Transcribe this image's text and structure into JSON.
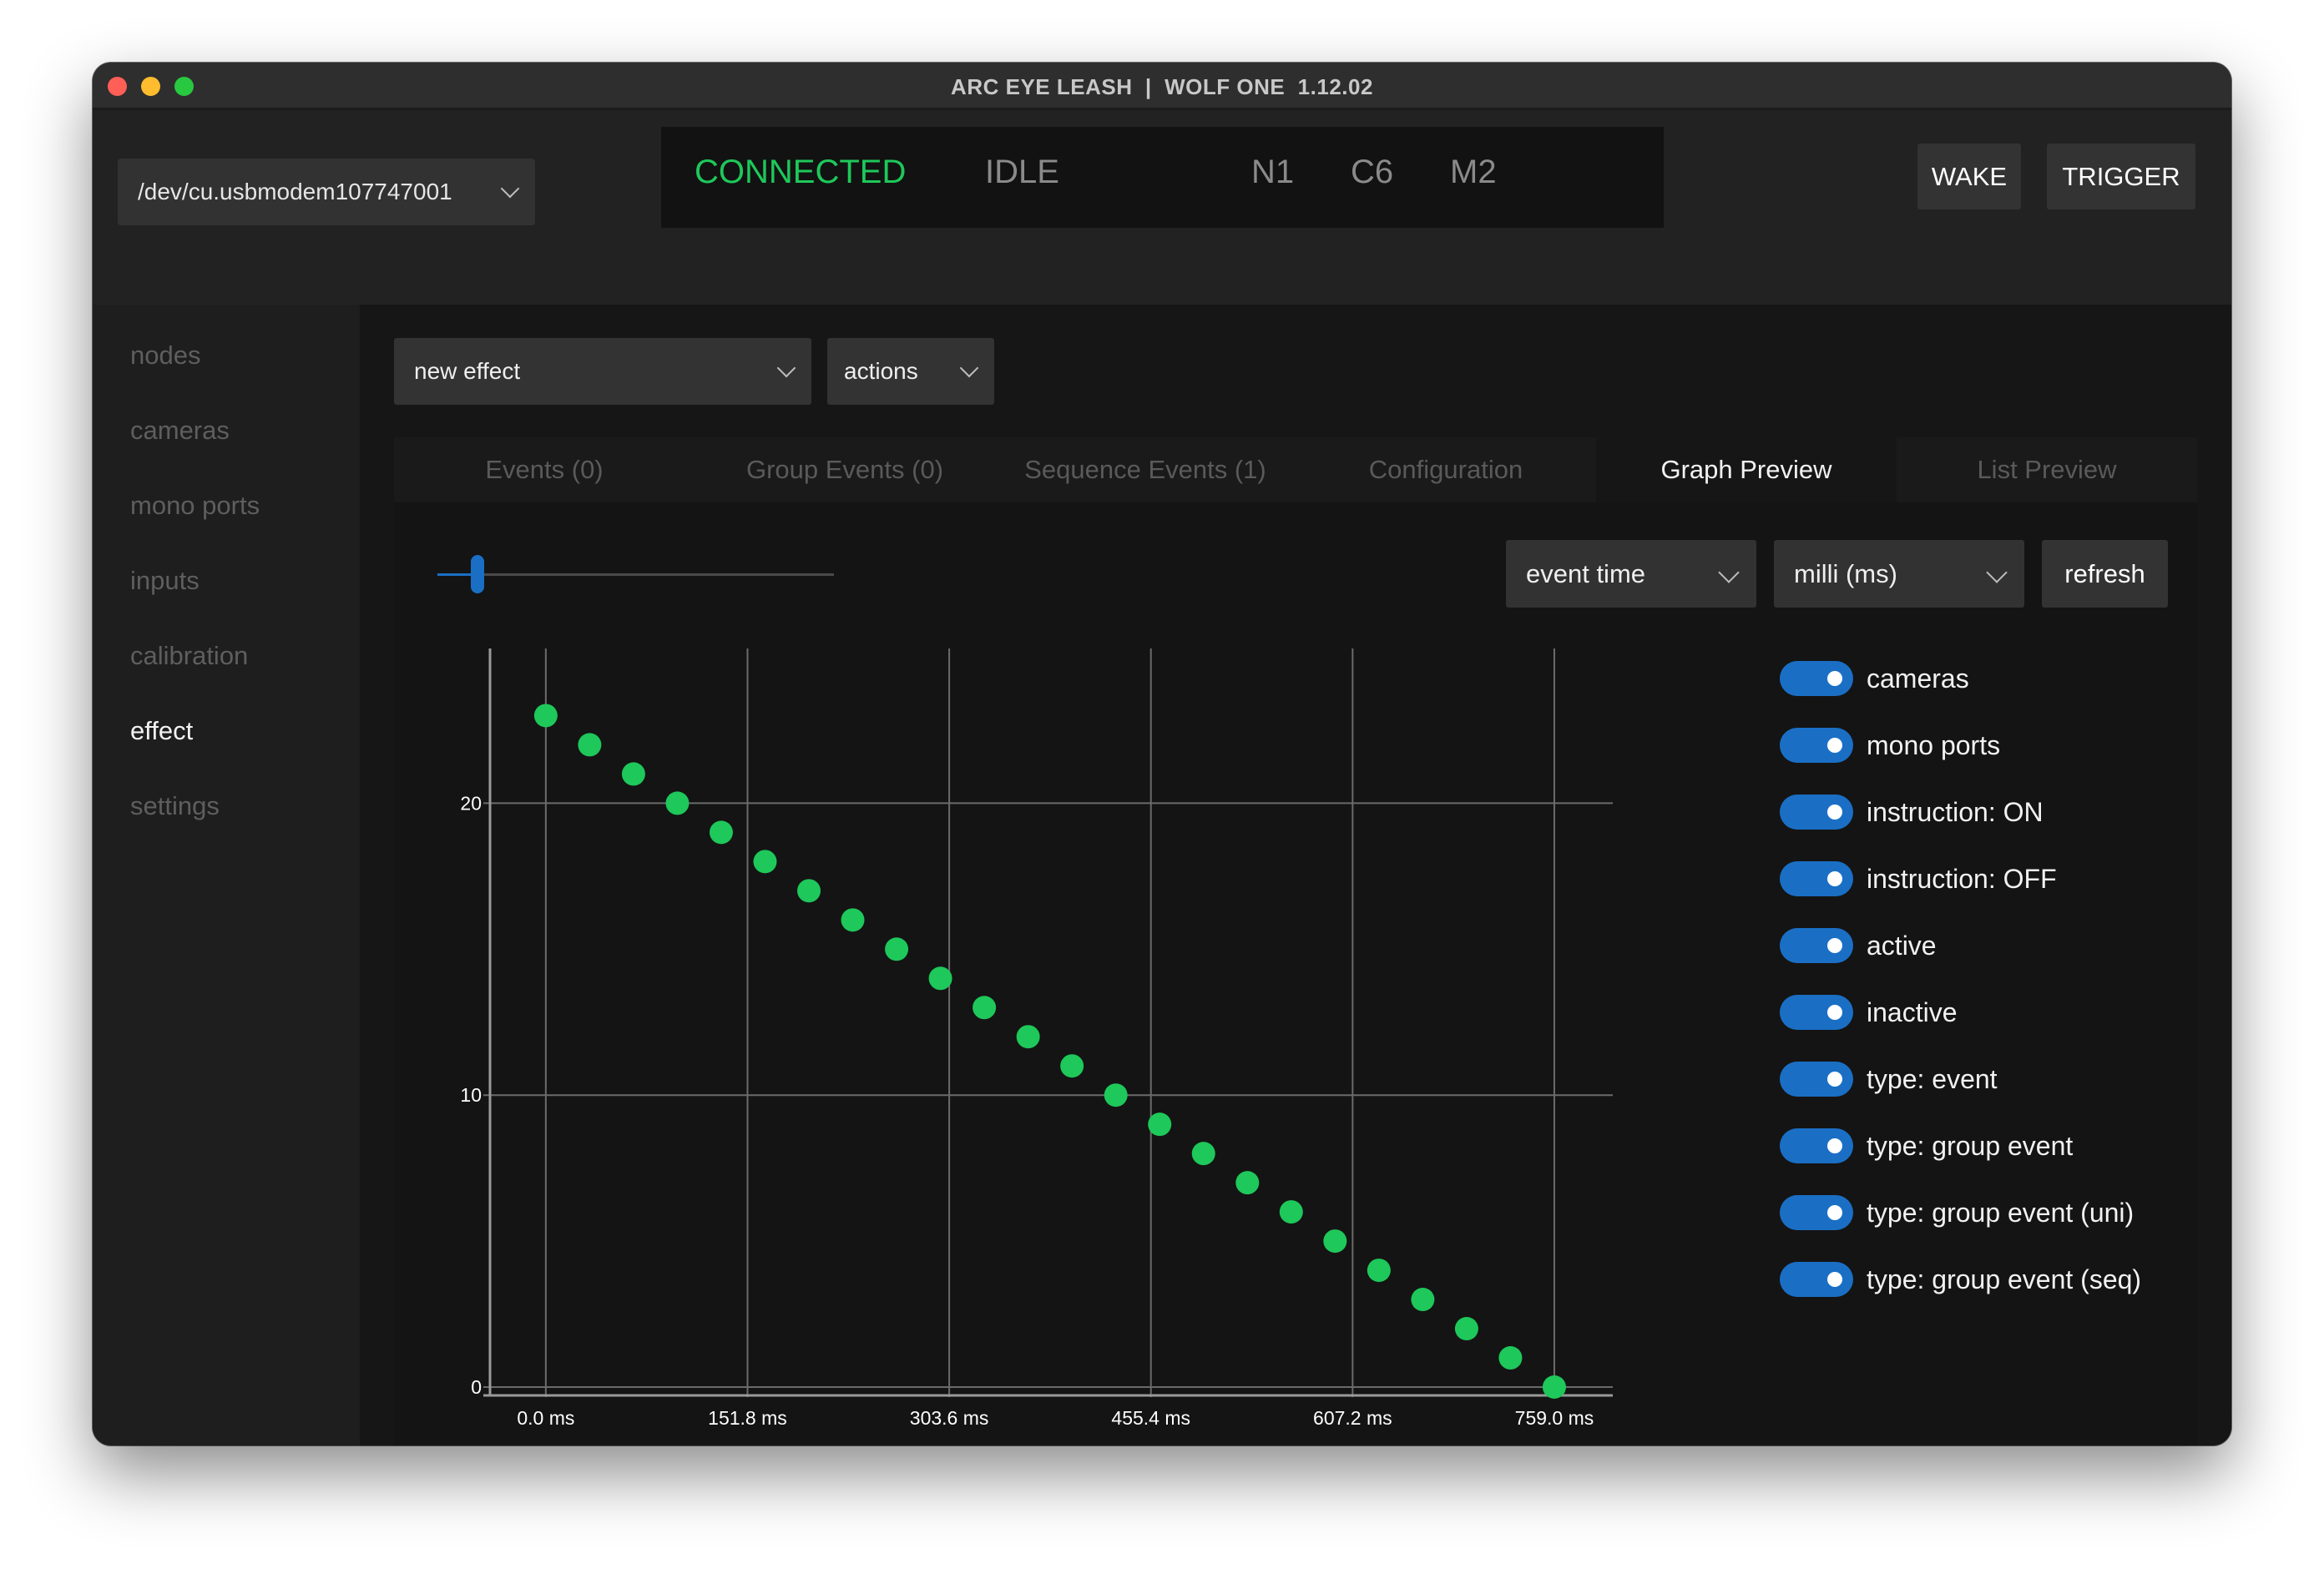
{
  "window": {
    "title": "ARC EYE LEASH  |  WOLF ONE  1.12.02"
  },
  "topbar": {
    "port": "/dev/cu.usbmodem107747001",
    "status": {
      "connection": "CONNECTED",
      "state": "IDLE",
      "n": "N1",
      "c": "C6",
      "m": "M2"
    },
    "wake_label": "WAKE",
    "trigger_label": "TRIGGER"
  },
  "sidebar": {
    "items": [
      {
        "label": "nodes"
      },
      {
        "label": "cameras"
      },
      {
        "label": "mono ports"
      },
      {
        "label": "inputs"
      },
      {
        "label": "calibration"
      },
      {
        "label": "effect"
      },
      {
        "label": "settings"
      }
    ],
    "active": "effect"
  },
  "main": {
    "effect_select": "new effect",
    "actions_select": "actions",
    "tabs": [
      {
        "label": "Events (0)"
      },
      {
        "label": "Group Events (0)"
      },
      {
        "label": "Sequence Events (1)"
      },
      {
        "label": "Configuration"
      },
      {
        "label": "Graph Preview"
      },
      {
        "label": "List Preview"
      }
    ],
    "active_tab": "Graph Preview",
    "controls": {
      "time_mode": "event time",
      "unit": "milli (ms)",
      "refresh_label": "refresh",
      "slider_value": 0.1
    },
    "toggles": [
      {
        "label": "cameras",
        "on": true
      },
      {
        "label": "mono ports",
        "on": true
      },
      {
        "label": "instruction: ON",
        "on": true
      },
      {
        "label": "instruction: OFF",
        "on": true
      },
      {
        "label": "active",
        "on": true
      },
      {
        "label": "inactive",
        "on": true
      },
      {
        "label": "type: event",
        "on": true
      },
      {
        "label": "type: group event",
        "on": true
      },
      {
        "label": "type: group event (uni)",
        "on": true
      },
      {
        "label": "type: group event (seq)",
        "on": true
      }
    ]
  },
  "colors": {
    "accent": "#1a6fc5",
    "connected": "#1ec85a",
    "point": "#1ec85a"
  },
  "chart_data": {
    "type": "scatter",
    "x_ticks": [
      {
        "value": 0.0,
        "label": "0.0 ms"
      },
      {
        "value": 151.8,
        "label": "151.8 ms"
      },
      {
        "value": 303.6,
        "label": "303.6 ms"
      },
      {
        "value": 455.4,
        "label": "455.4 ms"
      },
      {
        "value": 607.2,
        "label": "607.2 ms"
      },
      {
        "value": 759.0,
        "label": "759.0 ms"
      }
    ],
    "y_ticks": [
      {
        "value": 0,
        "label": "0"
      },
      {
        "value": 10,
        "label": "10"
      },
      {
        "value": 20,
        "label": "20"
      }
    ],
    "xlim": [
      -42,
      803
    ],
    "ylim": [
      0,
      25.3
    ],
    "grid": true,
    "series": [
      {
        "x": [
          0,
          33,
          66,
          99,
          132,
          165,
          198,
          231,
          264,
          297,
          330,
          363,
          396,
          429,
          462,
          495,
          528,
          561,
          594,
          627,
          660,
          693,
          726,
          759
        ],
        "y": [
          23,
          22,
          21,
          20,
          19,
          18,
          17,
          16,
          15,
          14,
          13,
          12,
          11,
          10,
          9,
          8,
          7,
          6,
          5,
          4,
          3,
          2,
          1,
          0
        ]
      }
    ]
  }
}
